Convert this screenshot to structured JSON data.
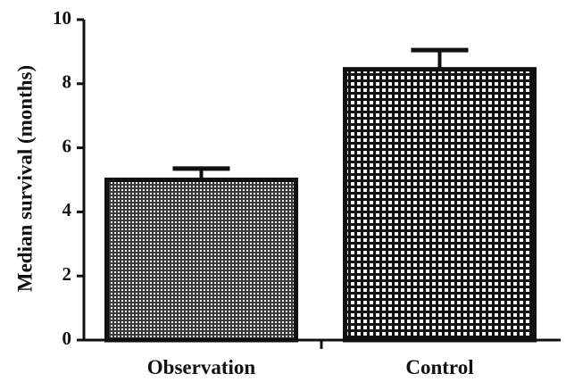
{
  "chart_data": {
    "type": "bar",
    "categories": [
      "Observation",
      "Control"
    ],
    "values": [
      5.0,
      8.45
    ],
    "error_upper": [
      5.35,
      9.05
    ],
    "ylabel": "Median survival (months)",
    "xlabel": "",
    "ylim": [
      0,
      10
    ],
    "yticks": [
      "0",
      "2",
      "4",
      "6",
      "8",
      "10"
    ],
    "grid": false,
    "legend": "none",
    "colors": {
      "axis": "#111111",
      "bar_outline": "#111111",
      "observation_fill": "#3a3a3a",
      "control_fill": "#ffffff"
    }
  }
}
